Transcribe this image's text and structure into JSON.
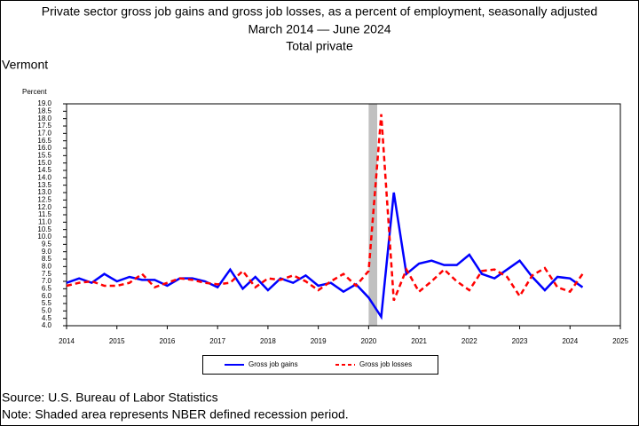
{
  "chart_data": {
    "type": "line",
    "title": "Private sector gross job gains and gross job losses, as a percent of employment, seasonally adjusted",
    "subtitle": "March 2014 — June 2024",
    "subtitle2": "Total private",
    "region": "Vermont",
    "y_label": "Percent",
    "source": "Source: U.S. Bureau of Labor Statistics",
    "note": "Note: Shaded area represents NBER defined recession period.",
    "x": [
      2014,
      2014.25,
      2014.5,
      2014.75,
      2015,
      2015.25,
      2015.5,
      2015.75,
      2016,
      2016.25,
      2016.5,
      2016.75,
      2017,
      2017.25,
      2017.5,
      2017.75,
      2018,
      2018.25,
      2018.5,
      2018.75,
      2019,
      2019.25,
      2019.5,
      2019.75,
      2020,
      2020.25,
      2020.5,
      2020.75,
      2021,
      2021.25,
      2021.5,
      2021.75,
      2022,
      2022.25,
      2022.5,
      2022.75,
      2023,
      2023.25,
      2023.5,
      2023.75,
      2024,
      2024.25
    ],
    "series": [
      {
        "name": "Gross job gains",
        "color": "#0000ff",
        "dash": false,
        "values": [
          6.9,
          7.2,
          6.9,
          7.5,
          7.0,
          7.3,
          7.1,
          7.1,
          6.7,
          7.2,
          7.2,
          7.0,
          6.6,
          7.8,
          6.5,
          7.3,
          6.4,
          7.2,
          6.9,
          7.4,
          6.7,
          6.9,
          6.3,
          6.8,
          5.9,
          4.6,
          13.0,
          7.5,
          8.2,
          8.4,
          8.1,
          8.1,
          8.8,
          7.5,
          7.2,
          7.8,
          8.4,
          7.3,
          6.4,
          7.3,
          7.2,
          6.6
        ]
      },
      {
        "name": "Gross job losses",
        "color": "#ff0000",
        "dash": true,
        "values": [
          6.7,
          6.9,
          7.0,
          6.7,
          6.7,
          6.9,
          7.5,
          6.6,
          6.9,
          7.2,
          7.1,
          6.9,
          6.8,
          6.9,
          7.7,
          6.6,
          7.2,
          7.1,
          7.4,
          7.0,
          6.4,
          7.0,
          7.5,
          6.7,
          7.7,
          18.3,
          5.7,
          7.8,
          6.3,
          7.0,
          7.8,
          7.0,
          6.4,
          7.7,
          7.8,
          7.3,
          6.0,
          7.4,
          7.9,
          6.6,
          6.3,
          7.5
        ]
      }
    ],
    "recession": [
      2020,
      2020.17
    ],
    "xlim": [
      2014,
      2025
    ],
    "xticks": [
      2014,
      2015,
      2016,
      2017,
      2018,
      2019,
      2020,
      2021,
      2022,
      2023,
      2024,
      2025
    ],
    "ylim": [
      4,
      19
    ],
    "yticks": [
      {
        "value": 4,
        "label": "4.0"
      },
      {
        "value": 4.5,
        "label": "4.5"
      },
      {
        "value": 5,
        "label": "5.0"
      },
      {
        "value": 5.5,
        "label": "5.5"
      },
      {
        "value": 6,
        "label": "6.0"
      },
      {
        "value": 6.5,
        "label": "6.5"
      },
      {
        "value": 7,
        "label": "7.0"
      },
      {
        "value": 7.5,
        "label": "7.5"
      },
      {
        "value": 8,
        "label": "8.0"
      },
      {
        "value": 8.5,
        "label": "8.5"
      },
      {
        "value": 9,
        "label": "9.0"
      },
      {
        "value": 9.5,
        "label": "9.5"
      },
      {
        "value": 10,
        "label": "10.0"
      },
      {
        "value": 10.5,
        "label": "10.5"
      },
      {
        "value": 11,
        "label": "11.0"
      },
      {
        "value": 11.5,
        "label": "11.5"
      },
      {
        "value": 12,
        "label": "12.0"
      },
      {
        "value": 12.5,
        "label": "12.5"
      },
      {
        "value": 13,
        "label": "13.0"
      },
      {
        "value": 13.5,
        "label": "13.5"
      },
      {
        "value": 14,
        "label": "14.0"
      },
      {
        "value": 14.5,
        "label": "14.5"
      },
      {
        "value": 15,
        "label": "15.0"
      },
      {
        "value": 15.5,
        "label": "15.5"
      },
      {
        "value": 16,
        "label": "16.0"
      },
      {
        "value": 16.5,
        "label": "16.5"
      },
      {
        "value": 17,
        "label": "17.0"
      },
      {
        "value": 17.5,
        "label": "17.5"
      },
      {
        "value": 18,
        "label": "18.0"
      },
      {
        "value": 18.5,
        "label": "18.5"
      },
      {
        "value": 19,
        "label": "19.0"
      }
    ],
    "grid": false,
    "legend": "bottom"
  }
}
